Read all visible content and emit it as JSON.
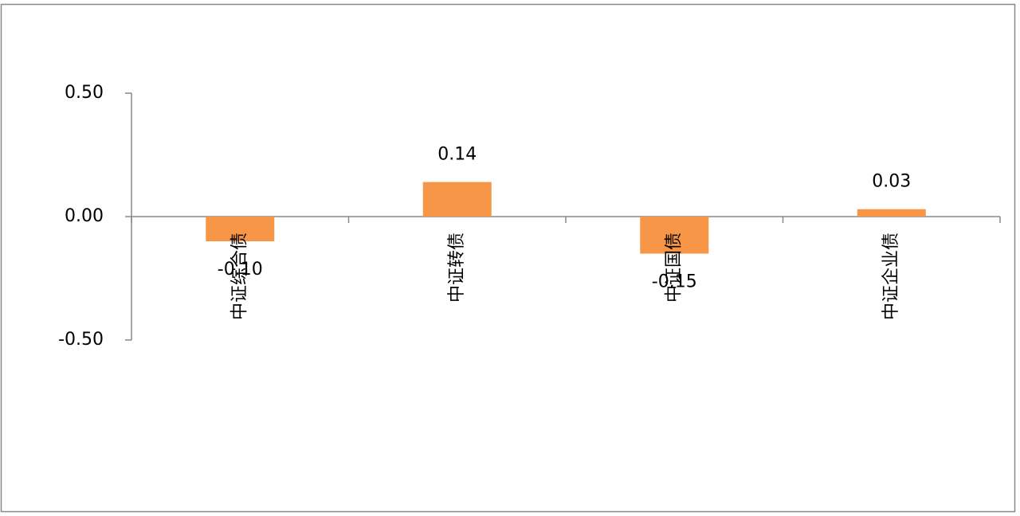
{
  "chart_data": {
    "type": "bar",
    "categories": [
      "中证综合债",
      "中证转债",
      "中证国债",
      "中证企业债"
    ],
    "values": [
      -0.1,
      0.14,
      -0.15,
      0.03
    ],
    "value_labels": [
      "-0.10",
      "0.14",
      "-0.15",
      "0.03"
    ],
    "color": "#f79646",
    "ylim": [
      -0.5,
      0.5
    ],
    "yticks": [
      {
        "value": 0.5,
        "label": "0.50"
      },
      {
        "value": 0,
        "label": "0.00"
      },
      {
        "value": -0.5,
        "label": "-0.50"
      }
    ]
  }
}
